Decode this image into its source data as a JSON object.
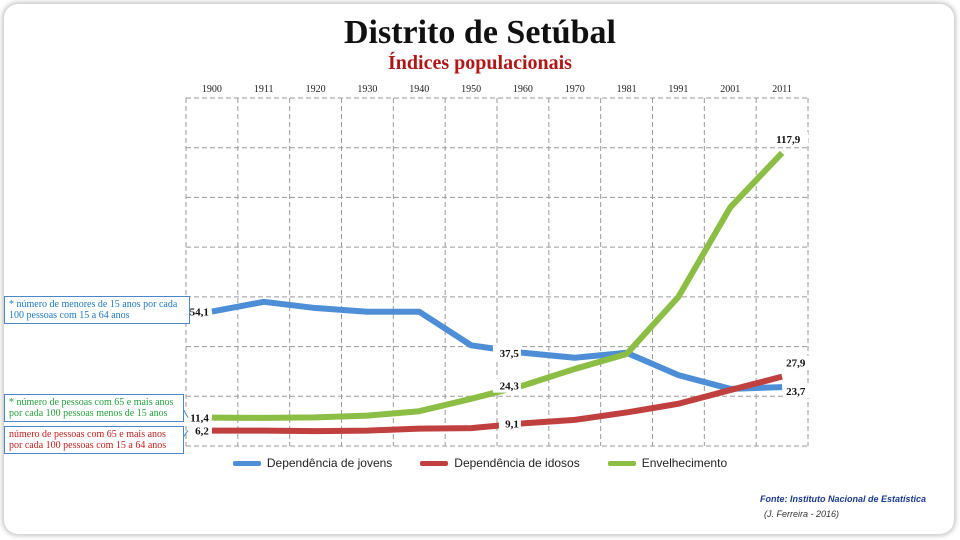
{
  "title": "Distrito de Setúbal",
  "subtitle": "Índices populacionais",
  "colors": {
    "blue": "#4e8ed6",
    "red": "#c04040",
    "green": "#8cbd45",
    "subtitle": "#b01818"
  },
  "chart_data": {
    "type": "line",
    "categories": [
      "1900",
      "1911",
      "1920",
      "1930",
      "1940",
      "1950",
      "1960",
      "1970",
      "1981",
      "1991",
      "2001",
      "2011"
    ],
    "ylim": [
      0,
      140
    ],
    "grid": true,
    "legend_position": "bottom",
    "series": [
      {
        "name": "Dependência de jovens",
        "color": "#4e8ed6",
        "values": [
          54.1,
          58.0,
          55.5,
          54.0,
          54.0,
          40.5,
          37.5,
          35.5,
          37.5,
          28.5,
          23.0,
          23.7
        ]
      },
      {
        "name": "Dependência de idosos",
        "color": "#c04040",
        "values": [
          6.2,
          6.2,
          6.0,
          6.2,
          7.0,
          7.2,
          9.1,
          10.5,
          13.5,
          17.0,
          22.5,
          27.9
        ]
      },
      {
        "name": "Envelhecimento",
        "color": "#8cbd45",
        "values": [
          11.4,
          11.3,
          11.5,
          12.2,
          14.0,
          19.0,
          24.3,
          31.0,
          37.0,
          60.0,
          96.0,
          117.9
        ]
      }
    ],
    "data_labels": [
      {
        "series": 0,
        "index": 0,
        "text": "54,1"
      },
      {
        "series": 0,
        "index": 6,
        "text": "37,5"
      },
      {
        "series": 0,
        "index": 11,
        "text": "23,7"
      },
      {
        "series": 1,
        "index": 0,
        "text": "6,2"
      },
      {
        "series": 1,
        "index": 6,
        "text": "9,1"
      },
      {
        "series": 1,
        "index": 11,
        "text": "27,9"
      },
      {
        "series": 2,
        "index": 0,
        "text": "11,4"
      },
      {
        "series": 2,
        "index": 6,
        "text": "24,3"
      },
      {
        "series": 2,
        "index": 11,
        "text": "117,9"
      }
    ]
  },
  "callouts": {
    "blue": "* número de menores de 15 anos  por cada 100 pessoas  com 15 a 64 anos",
    "green": "* número de pessoas com 65 e mais anos por cada 100 pessoas menos de 15 anos",
    "red": "número de pessoas com 65 e mais anos por cada 100 pessoas  com 15 a 64 anos"
  },
  "source": "Fonte: Instituto Nacional de Estatística",
  "author": "(J. Ferreira - 2016)"
}
